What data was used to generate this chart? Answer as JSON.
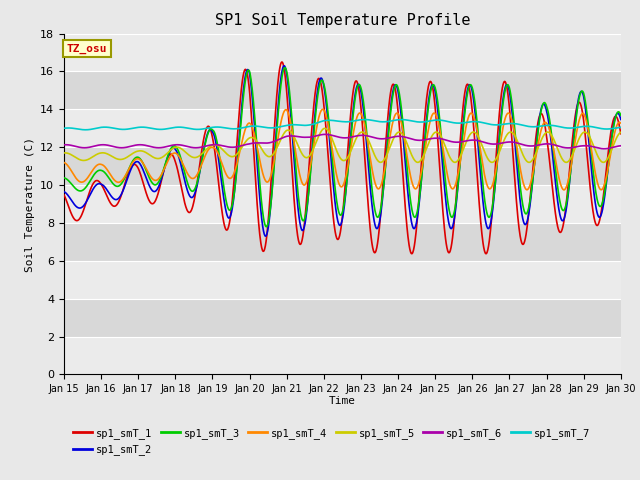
{
  "title": "SP1 Soil Temperature Profile",
  "xlabel": "Time",
  "ylabel": "Soil Temperature (C)",
  "ylim": [
    0,
    18
  ],
  "yticks": [
    0,
    2,
    4,
    6,
    8,
    10,
    12,
    14,
    16,
    18
  ],
  "fig_bg": "#e8e8e8",
  "plot_bg_light": "#ebebeb",
  "plot_bg_dark": "#d8d8d8",
  "tz_label": "TZ_osu",
  "series_colors": {
    "sp1_smT_1": "#dd0000",
    "sp1_smT_2": "#0000dd",
    "sp1_smT_3": "#00cc00",
    "sp1_smT_4": "#ff8800",
    "sp1_smT_5": "#cccc00",
    "sp1_smT_6": "#aa00aa",
    "sp1_smT_7": "#00cccc"
  },
  "lw": 1.2
}
